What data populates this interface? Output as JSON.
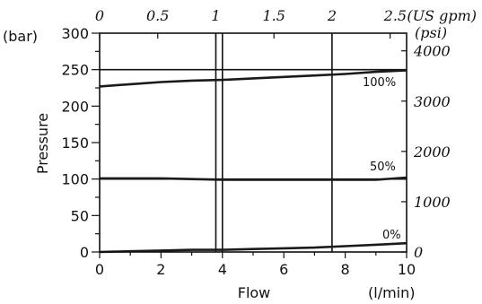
{
  "chart_data": {
    "type": "line",
    "colors": {
      "line": "#1a1a1a",
      "grid": "#111111",
      "background": "#ffffff"
    },
    "x": {
      "label": "Flow",
      "unit": "(l/min)",
      "range": [
        0,
        10
      ],
      "ticks": [
        0,
        2,
        4,
        6,
        8,
        10
      ],
      "minor_step": 1,
      "gridlines": [
        4
      ]
    },
    "x2": {
      "unit": "(US gpm)",
      "ticks": [
        0,
        0.5,
        1,
        1.5,
        2,
        2.5
      ],
      "tick_labels": [
        "0",
        "0.5",
        "1",
        "1.5",
        "2",
        "2.5"
      ],
      "gridlines": [
        1,
        2
      ]
    },
    "y": {
      "label": "Pressure",
      "unit": "(bar)",
      "range": [
        0,
        300
      ],
      "ticks": [
        0,
        50,
        100,
        150,
        200,
        250,
        300
      ],
      "minor_step": 25,
      "gridlines": [
        100,
        250
      ]
    },
    "y2": {
      "unit": "(psi)",
      "ticks": [
        0,
        1000,
        2000,
        3000,
        4000
      ],
      "tick_labels": [
        "0",
        "1000",
        "2000",
        "3000",
        "4000"
      ]
    },
    "series": [
      {
        "name": "100%",
        "x": [
          0,
          1,
          2,
          3,
          4,
          5,
          6,
          7,
          8,
          9,
          10
        ],
        "values": [
          227,
          230,
          233,
          235,
          236,
          238,
          240,
          242,
          244,
          247,
          249
        ]
      },
      {
        "name": "50%",
        "x": [
          0,
          1,
          2,
          3,
          4,
          5,
          6,
          7,
          8,
          9,
          10
        ],
        "values": [
          101,
          101,
          101,
          100,
          99,
          99,
          99,
          99,
          99,
          99,
          102
        ]
      },
      {
        "name": "0%",
        "x": [
          0,
          1,
          2,
          3,
          4,
          5,
          6,
          7,
          8,
          9,
          10
        ],
        "values": [
          0,
          1,
          2,
          3,
          3,
          4,
          5,
          6,
          8,
          10,
          12
        ]
      }
    ]
  }
}
